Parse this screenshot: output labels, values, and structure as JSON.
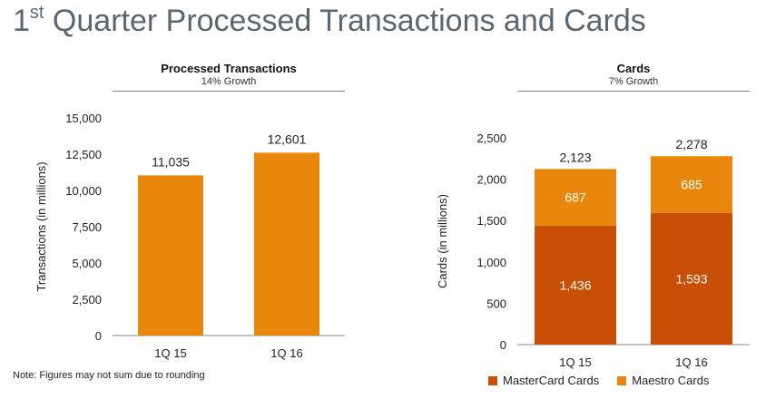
{
  "title_main": "1",
  "title_sup": "st",
  "title_rest": " Quarter Processed Transactions and Cards",
  "note": "Note: Figures may not sum due to rounding",
  "colors": {
    "orange": "#e8870b",
    "dark_orange": "#c94f06",
    "grid": "#888888"
  },
  "chart_data": [
    {
      "type": "bar",
      "title": "Processed Transactions",
      "subtitle": "14% Growth",
      "ylabel": "Transactions (in millions)",
      "categories": [
        "1Q 15",
        "1Q 16"
      ],
      "values": [
        11035,
        12601
      ],
      "value_labels": [
        "11,035",
        "12,601"
      ],
      "ylim": [
        0,
        15000
      ],
      "yticks": [
        0,
        2500,
        5000,
        7500,
        10000,
        12500,
        15000
      ],
      "ytick_labels": [
        "0",
        "2,500",
        "5,000",
        "7,500",
        "10,000",
        "12,500",
        "15,000"
      ]
    },
    {
      "type": "bar",
      "stacked": true,
      "title": "Cards",
      "subtitle": "7% Growth",
      "ylabel": "Cards (in millions)",
      "categories": [
        "1Q 15",
        "1Q 16"
      ],
      "series": [
        {
          "name": "MasterCard Cards",
          "values": [
            1436,
            1593
          ],
          "labels": [
            "1,436",
            "1,593"
          ],
          "color": "#c94f06"
        },
        {
          "name": "Maestro Cards",
          "values": [
            687,
            685
          ],
          "labels": [
            "687",
            "685"
          ],
          "color": "#e8870b"
        }
      ],
      "totals": [
        2123,
        2278
      ],
      "total_labels": [
        "2,123",
        "2,278"
      ],
      "ylim": [
        0,
        2500
      ],
      "yticks": [
        0,
        500,
        1000,
        1500,
        2000,
        2500
      ],
      "ytick_labels": [
        "0",
        "500",
        "1,000",
        "1,500",
        "2,000",
        "2,500"
      ],
      "legend": "bottom"
    }
  ]
}
